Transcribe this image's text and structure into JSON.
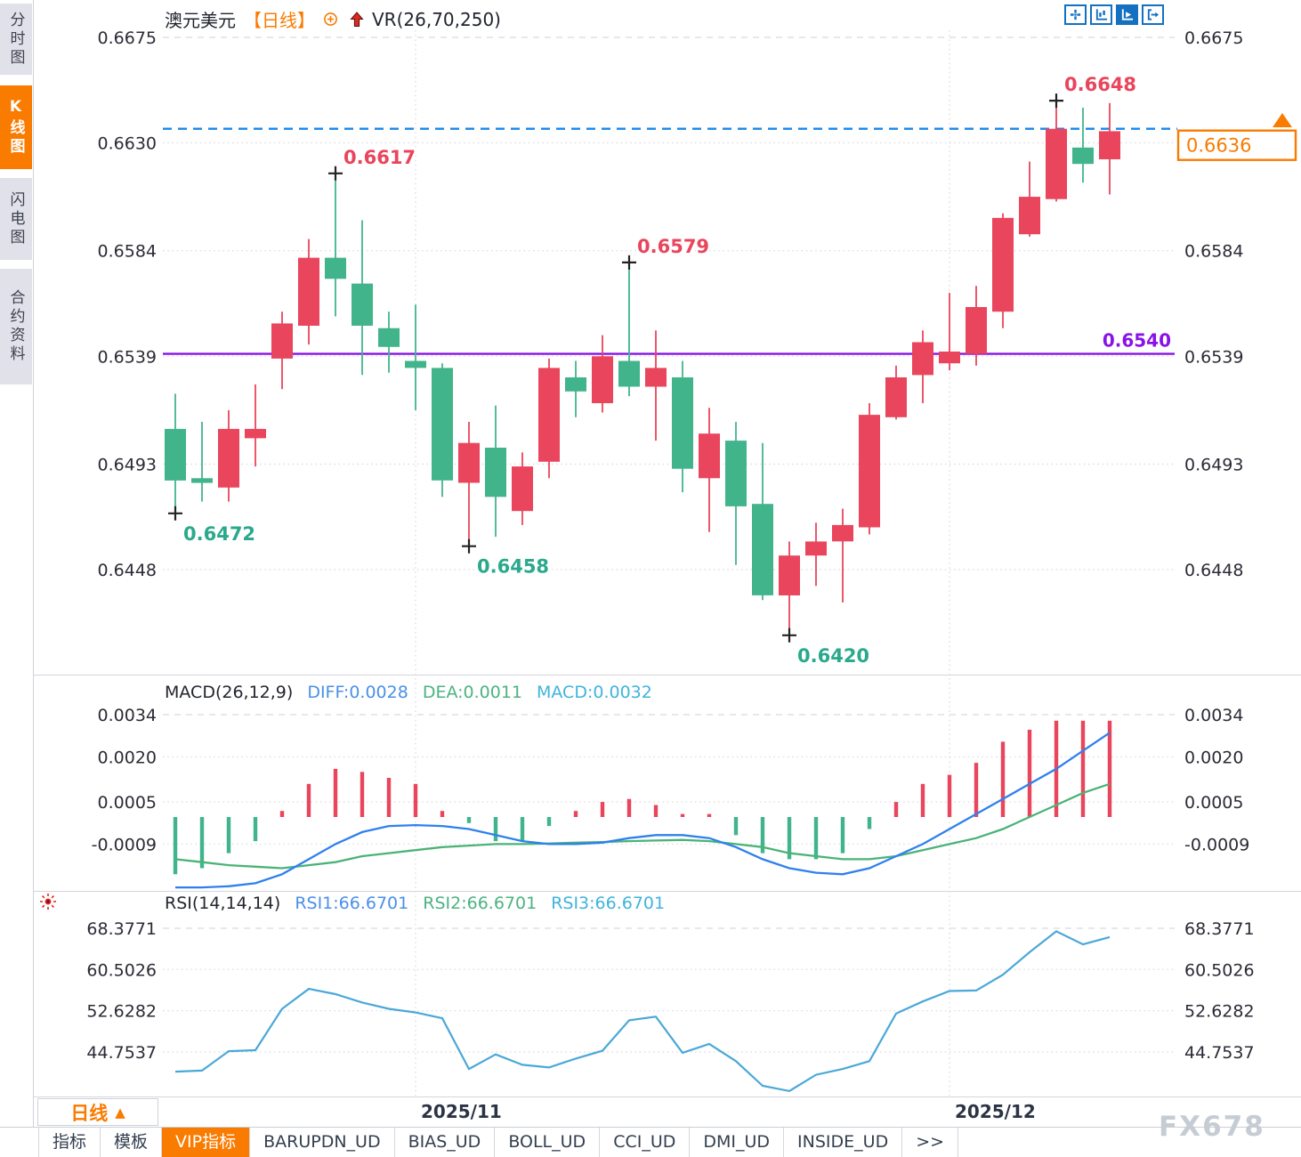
{
  "header": {
    "symbol": "澳元美元",
    "period": "【日线】",
    "overlay_indicator": "VR(26,70,250)"
  },
  "toolbar": {
    "buttons": [
      {
        "name": "crosshair",
        "active": false
      },
      {
        "name": "axis-candles",
        "active": false
      },
      {
        "name": "auto-play",
        "active": true
      },
      {
        "name": "go-to-latest",
        "active": false
      }
    ]
  },
  "sidebar": {
    "items": [
      {
        "label": "分时图",
        "active": false
      },
      {
        "label": "K线图",
        "active": true
      },
      {
        "label": "闪电图",
        "active": false
      },
      {
        "label": "合约资料",
        "active": false
      }
    ]
  },
  "macd_panel": {
    "title": "MACD(26,12,9)",
    "diff_label": "DIFF:0.0028",
    "dea_label": "DEA:0.0011",
    "macd_label": "MACD:0.0032"
  },
  "rsi_panel": {
    "title": "RSI(14,14,14)",
    "rsi1_label": "RSI1:66.6701",
    "rsi2_label": "RSI2:66.6701",
    "rsi3_label": "RSI3:66.6701"
  },
  "period_selector": {
    "label": "日线",
    "arrow": "▲"
  },
  "tabs": {
    "items": [
      {
        "label": "指标",
        "active": false
      },
      {
        "label": "模板",
        "active": false
      },
      {
        "label": "VIP指标",
        "active": true
      },
      {
        "label": "BARUPDN_UD",
        "active": false
      },
      {
        "label": "BIAS_UD",
        "active": false
      },
      {
        "label": "BOLL_UD",
        "active": false
      },
      {
        "label": "CCI_UD",
        "active": false
      },
      {
        "label": "DMI_UD",
        "active": false
      },
      {
        "label": "INSIDE_UD",
        "active": false
      },
      {
        "label": ">>",
        "active": false
      }
    ]
  },
  "watermark": "FX678",
  "colors": {
    "up": "#e9455c",
    "down": "#42b48c",
    "diff_line": "#2f80ed",
    "dea_line": "#4ab377",
    "rsi_line": "#4aa8d8",
    "hline_purple": "#8812e8",
    "current_line_blue": "#1787e8",
    "accent_orange": "#f97b00",
    "annotation_red": "#e9455c",
    "annotation_green": "#2aa98c",
    "grid": "#dfdfe8",
    "marker": "#222222"
  },
  "chart_data": {
    "type": "candlestick",
    "title": "澳元美元【日线】",
    "candles_ohlc": [
      [
        0.6508,
        0.6523,
        0.6472,
        0.6486
      ],
      [
        0.6487,
        0.6511,
        0.6477,
        0.6485
      ],
      [
        0.6483,
        0.6516,
        0.6477,
        0.6508
      ],
      [
        0.6504,
        0.6527,
        0.6492,
        0.6508
      ],
      [
        0.6538,
        0.6558,
        0.6525,
        0.6553
      ],
      [
        0.6552,
        0.6589,
        0.6544,
        0.6581
      ],
      [
        0.6581,
        0.6617,
        0.6556,
        0.6572
      ],
      [
        0.657,
        0.6597,
        0.6531,
        0.6552
      ],
      [
        0.6551,
        0.6558,
        0.6532,
        0.6543
      ],
      [
        0.6537,
        0.6561,
        0.6516,
        0.6534
      ],
      [
        0.6534,
        0.6536,
        0.6479,
        0.6486
      ],
      [
        0.6485,
        0.6511,
        0.6458,
        0.6502
      ],
      [
        0.65,
        0.6518,
        0.6462,
        0.6479
      ],
      [
        0.6473,
        0.6498,
        0.6467,
        0.6492
      ],
      [
        0.6494,
        0.6538,
        0.6487,
        0.6534
      ],
      [
        0.653,
        0.6537,
        0.6513,
        0.6524
      ],
      [
        0.6519,
        0.6548,
        0.6515,
        0.6539
      ],
      [
        0.6537,
        0.6579,
        0.6522,
        0.6526
      ],
      [
        0.6526,
        0.655,
        0.6503,
        0.6534
      ],
      [
        0.653,
        0.6537,
        0.6481,
        0.6491
      ],
      [
        0.6487,
        0.6517,
        0.6464,
        0.6506
      ],
      [
        0.6503,
        0.6511,
        0.645,
        0.6475
      ],
      [
        0.6476,
        0.6502,
        0.6435,
        0.6437
      ],
      [
        0.6437,
        0.646,
        0.642,
        0.6454
      ],
      [
        0.6454,
        0.6468,
        0.6441,
        0.646
      ],
      [
        0.646,
        0.6474,
        0.6434,
        0.6467
      ],
      [
        0.6466,
        0.6519,
        0.6463,
        0.6514
      ],
      [
        0.6513,
        0.6535,
        0.6512,
        0.653
      ],
      [
        0.6531,
        0.655,
        0.6519,
        0.6545
      ],
      [
        0.6536,
        0.6566,
        0.6533,
        0.6541
      ],
      [
        0.654,
        0.6569,
        0.6535,
        0.656
      ],
      [
        0.6558,
        0.66,
        0.6551,
        0.6598
      ],
      [
        0.6591,
        0.6622,
        0.659,
        0.6607
      ],
      [
        0.6606,
        0.6648,
        0.6605,
        0.6636
      ],
      [
        0.6628,
        0.6645,
        0.6613,
        0.6621
      ],
      [
        0.6623,
        0.6647,
        0.6608,
        0.6635
      ]
    ],
    "axes": {
      "price_left": [
        "0.6675",
        "0.6630",
        "0.6584",
        "0.6539",
        "0.6493",
        "0.6448"
      ],
      "price_right": [
        "0.6675",
        "0.6584",
        "0.6539",
        "0.6493",
        "0.6448"
      ],
      "macd_ticks": [
        "0.0034",
        "0.0020",
        "0.0005",
        "-0.0009"
      ],
      "rsi_ticks": [
        "68.3771",
        "60.5026",
        "52.6282",
        "44.7537"
      ],
      "x_months": [
        {
          "label": "2025/11",
          "candle_index": 9
        },
        {
          "label": "2025/12",
          "candle_index": 29
        }
      ]
    },
    "levels": {
      "horizontal_line_value": 0.654,
      "horizontal_line_label": "0.6540",
      "current_price_value": 0.6636,
      "current_price_label": "0.6636"
    },
    "annotations": [
      {
        "index": 0,
        "side": "low",
        "label": "0.6472"
      },
      {
        "index": 6,
        "side": "high",
        "label": "0.6617"
      },
      {
        "index": 11,
        "side": "low",
        "label": "0.6458"
      },
      {
        "index": 17,
        "side": "high",
        "label": "0.6579"
      },
      {
        "index": 23,
        "side": "low",
        "label": "0.6420"
      },
      {
        "index": 33,
        "side": "high",
        "label": "0.6648"
      }
    ],
    "macd": {
      "diff": [
        -0.00234,
        -0.00234,
        -0.0023,
        -0.0022,
        -0.0019,
        -0.0014,
        -0.0009,
        -0.0005,
        -0.0003,
        -0.00027,
        -0.0003,
        -0.0004,
        -0.0006,
        -0.0008,
        -0.0009,
        -0.0009,
        -0.00085,
        -0.0007,
        -0.0006,
        -0.0006,
        -0.0007,
        -0.001,
        -0.0014,
        -0.0017,
        -0.00185,
        -0.0019,
        -0.0017,
        -0.0013,
        -0.0009,
        -0.0004,
        0.0001,
        0.0006,
        0.0011,
        0.0016,
        0.0022,
        0.0028
      ],
      "dea": [
        -0.0014,
        -0.0015,
        -0.0016,
        -0.00165,
        -0.0017,
        -0.0016,
        -0.0015,
        -0.0013,
        -0.0012,
        -0.0011,
        -0.001,
        -0.00095,
        -0.0009,
        -0.0009,
        -0.00088,
        -0.00085,
        -0.00083,
        -0.0008,
        -0.00078,
        -0.00076,
        -0.0008,
        -0.0009,
        -0.001,
        -0.0012,
        -0.0013,
        -0.0014,
        -0.0014,
        -0.0013,
        -0.0011,
        -0.0009,
        -0.0007,
        -0.0004,
        0.0,
        0.0004,
        0.0008,
        0.0011
      ],
      "hist": [
        -0.0019,
        -0.0017,
        -0.0012,
        -0.0008,
        0.0002,
        0.0011,
        0.0016,
        0.0015,
        0.0013,
        0.0011,
        0.0002,
        -0.0002,
        -0.0008,
        -0.0008,
        -0.0003,
        0.0002,
        0.0005,
        0.0006,
        0.0004,
        0.0001,
        0.0001,
        -0.0006,
        -0.0012,
        -0.0014,
        -0.0014,
        -0.0012,
        -0.0004,
        0.0005,
        0.0011,
        0.0014,
        0.0018,
        0.0025,
        0.0029,
        0.0032,
        0.0032,
        0.0032
      ]
    },
    "rsi_values": [
      41.0,
      41.2,
      44.9,
      45.1,
      53.0,
      56.8,
      55.8,
      54.2,
      53.0,
      52.3,
      51.2,
      41.5,
      44.3,
      42.3,
      41.8,
      43.5,
      45.0,
      50.8,
      51.5,
      44.6,
      46.3,
      43.0,
      38.3,
      37.3,
      40.4,
      41.5,
      43.0,
      52.1,
      54.4,
      56.4,
      56.5,
      59.5,
      63.8,
      67.8,
      65.3,
      66.7
    ]
  }
}
